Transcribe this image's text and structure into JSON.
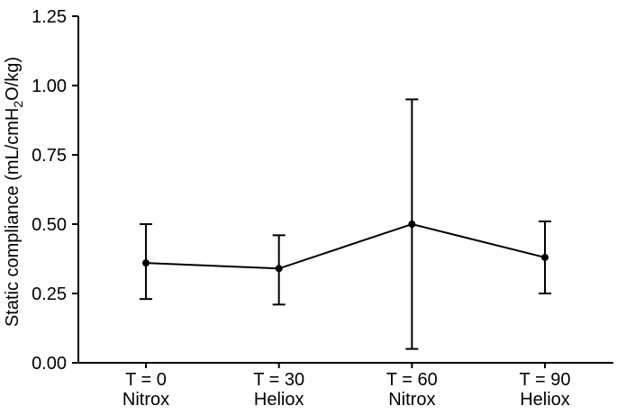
{
  "chart_data": {
    "type": "line",
    "title": "",
    "xlabel": "",
    "ylabel": {
      "pre": "Static compliance (mL/cmH",
      "sub": "2",
      "post": "O/kg)"
    },
    "categories": [
      {
        "line1": "T = 0",
        "line2": "Nitrox"
      },
      {
        "line1": "T = 30",
        "line2": "Heliox"
      },
      {
        "line1": "T = 60",
        "line2": "Nitrox"
      },
      {
        "line1": "T = 90",
        "line2": "Heliox"
      }
    ],
    "series": [
      {
        "name": "Static compliance",
        "values": [
          0.36,
          0.34,
          0.5,
          0.38
        ],
        "error_low": [
          0.23,
          0.21,
          0.05,
          0.25
        ],
        "error_high": [
          0.5,
          0.46,
          0.95,
          0.51
        ]
      }
    ],
    "ylim": [
      0,
      1.25
    ],
    "ytick_labels": [
      "0.00",
      "0.25",
      "0.50",
      "0.75",
      "1.00",
      "1.25"
    ],
    "grid": false,
    "legend": "none",
    "marker": "filled-circle",
    "colors": {
      "line": "#000000",
      "marker": "#000000",
      "text": "#000000",
      "background": "#ffffff"
    }
  }
}
